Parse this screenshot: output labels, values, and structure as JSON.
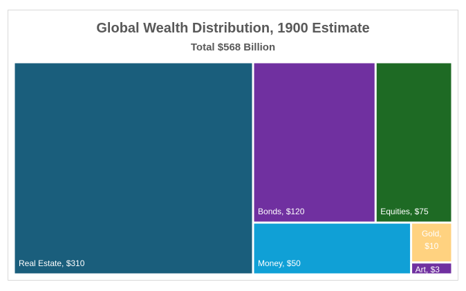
{
  "chart_data": {
    "type": "treemap",
    "title": "Global Wealth Distribution, 1900 Estimate",
    "subtitle": "Total $568 Billion",
    "unit": "$ Billion",
    "items": [
      {
        "name": "Real Estate",
        "value": 310,
        "label": "Real Estate, $310",
        "color": "#1a5e7c"
      },
      {
        "name": "Bonds",
        "value": 120,
        "label": "Bonds, $120",
        "color": "#7030a0"
      },
      {
        "name": "Equities",
        "value": 75,
        "label": "Equities, $75",
        "color": "#1e6a24"
      },
      {
        "name": "Money",
        "value": 50,
        "label": "Money, $50",
        "color": "#10a0d6"
      },
      {
        "name": "Gold",
        "value": 10,
        "label": "Gold, $10",
        "color": "#ffd280"
      },
      {
        "name": "Art",
        "value": 3,
        "label": "Art, $3",
        "color": "#7030a0"
      }
    ]
  }
}
